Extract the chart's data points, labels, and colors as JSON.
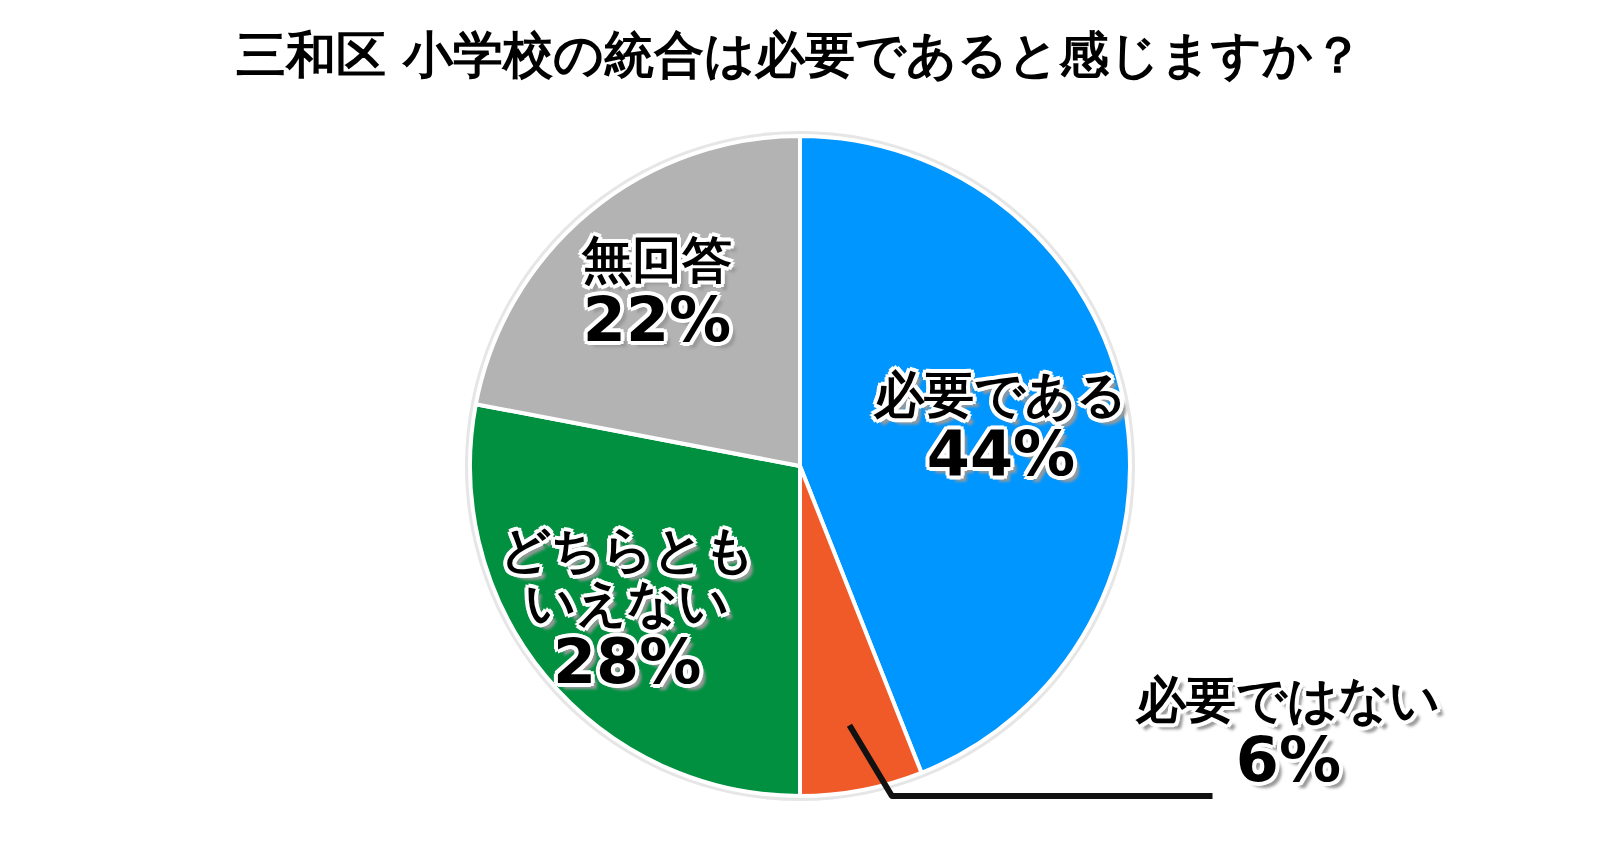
{
  "chart_data": {
    "type": "pie",
    "title": "三和区 小学校の統合は必要であると感じますか？",
    "categories": [
      "必要である",
      "必要ではない",
      "どちらともいえない",
      "無回答"
    ],
    "values": [
      44,
      6,
      28,
      22
    ],
    "colors": [
      "#0096ff",
      "#f05a28",
      "#009040",
      "#b3b3b3"
    ],
    "value_labels": [
      "44%",
      "6%",
      "28%",
      "22%"
    ]
  }
}
